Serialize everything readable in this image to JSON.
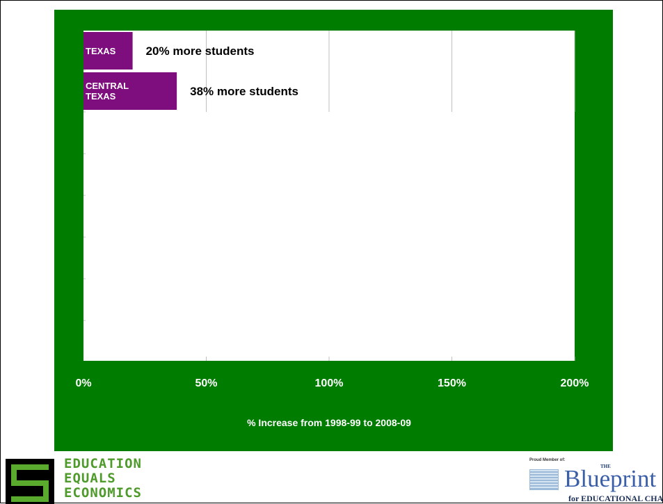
{
  "chart_data": {
    "type": "bar",
    "orientation": "horizontal",
    "categories": [
      "TEXAS",
      "CENTRAL TEXAS"
    ],
    "values": [
      20,
      38
    ],
    "value_labels": [
      "20% more students",
      "38% more students"
    ],
    "title": "",
    "xlabel": "% Increase from 1998-99 to 2008-09",
    "ylabel": "",
    "xlim": [
      0,
      200
    ],
    "x_ticks": [
      0,
      50,
      100,
      150,
      200
    ],
    "x_tick_labels": [
      "0%",
      "50%",
      "100%",
      "150%",
      "200%"
    ],
    "grid": true,
    "colors": {
      "bar": "#7e0d7e",
      "panel": "#007c00",
      "plot_bg": "#ffffff",
      "gridline": "#bfbfbf"
    }
  },
  "logos": {
    "eee": {
      "lines": [
        "EDUCATION",
        "EQUALS",
        "ECONOMICS"
      ],
      "icon": "eee-emblem-icon"
    },
    "blueprint": {
      "proud": "Proud Member of:",
      "the": "THE",
      "word": "Blueprint",
      "tagline": "for EDUCATIONAL CHANGE™",
      "icon": "blueprint-grid-icon"
    }
  }
}
